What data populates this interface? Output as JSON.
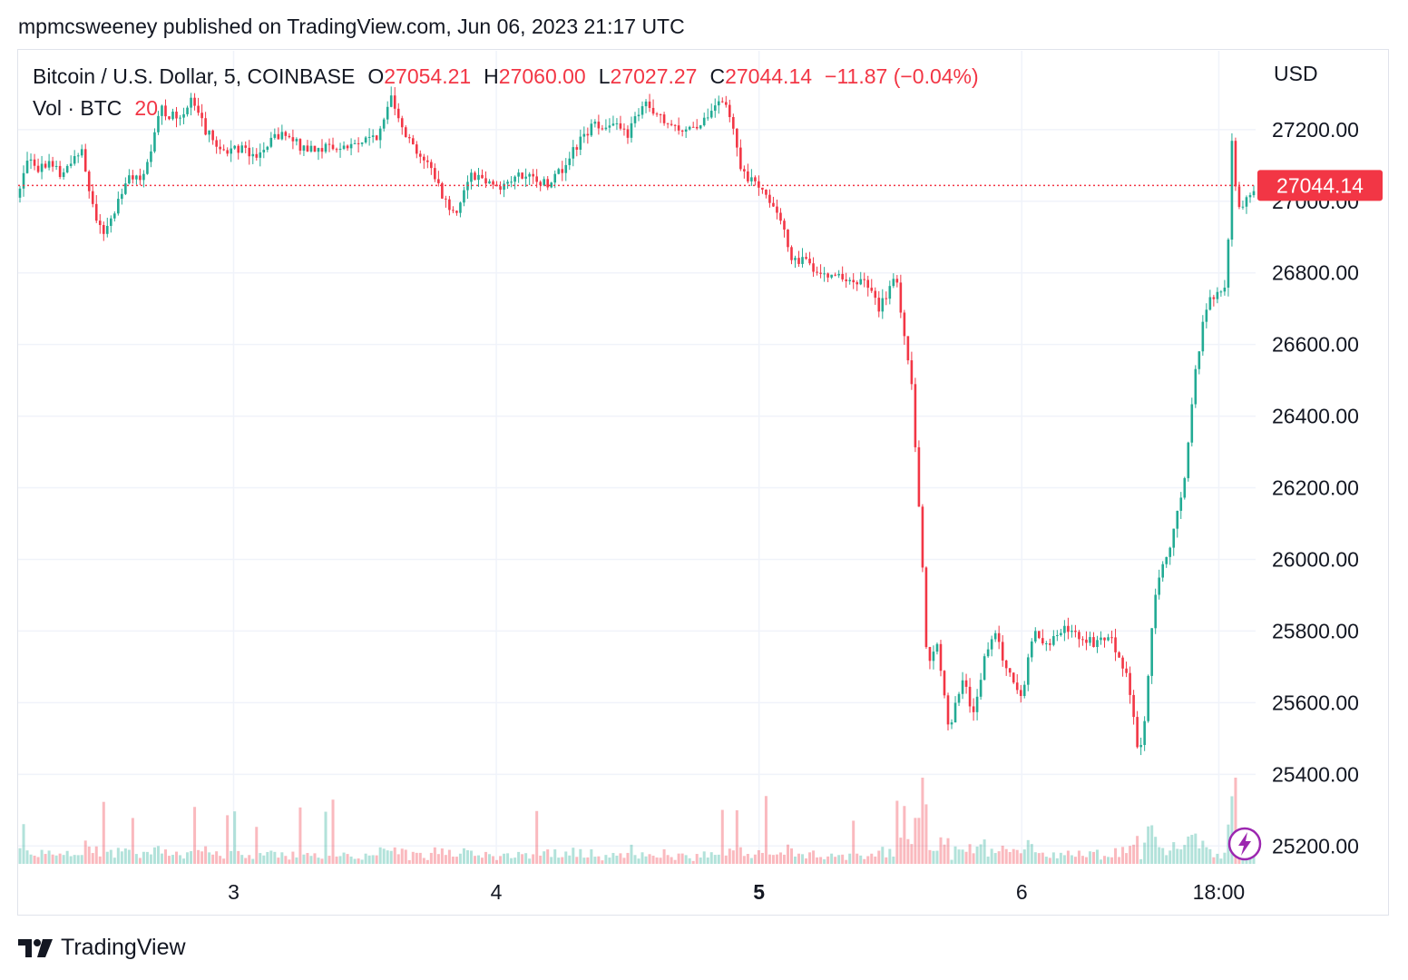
{
  "header": {
    "published": "mpmcsweeney published on TradingView.com, Jun 06, 2023 21:17 UTC"
  },
  "legend": {
    "symbol": "Bitcoin / U.S. Dollar, 5, COINBASE",
    "open_label": "O",
    "open": "27054.21",
    "high_label": "H",
    "high": "27060.00",
    "low_label": "L",
    "low": "27027.27",
    "close_label": "C",
    "close": "27044.14",
    "change": "−11.87 (−0.04%)",
    "volume_label": "Vol · BTC",
    "volume": "20"
  },
  "footer": {
    "brand": "TradingView"
  },
  "colors": {
    "up": "#22ab94",
    "down": "#f23645",
    "grid": "#f0f3fa",
    "text": "#131722",
    "price_tag": "#f23645"
  },
  "icons": {
    "lightning": "lightning-icon",
    "logo": "tradingview-logo"
  },
  "chart_data": {
    "type": "candlestick",
    "interval": "5",
    "exchange": "COINBASE",
    "y_unit": "USD",
    "ylim": [
      25150,
      27420
    ],
    "y_ticks": [
      27200.0,
      27000.0,
      26800.0,
      26600.0,
      26400.0,
      26200.0,
      26000.0,
      25800.0,
      25600.0,
      25400.0,
      25200.0
    ],
    "y_tick_labels": [
      "27200.00",
      "27000.00",
      "26800.00",
      "26600.00",
      "26400.00",
      "26200.00",
      "26000.00",
      "25800.00",
      "25600.00",
      "25400.00",
      "25200.00"
    ],
    "x_ticks": [
      {
        "label": "3",
        "t": 1.0,
        "bold": false
      },
      {
        "label": "4",
        "t": 2.0,
        "bold": false
      },
      {
        "label": "5",
        "t": 3.0,
        "bold": true
      },
      {
        "label": "6",
        "t": 4.0,
        "bold": false
      },
      {
        "label": "18:00",
        "t": 4.75,
        "bold": false
      }
    ],
    "xlim": [
      0.18,
      4.89
    ],
    "last_price": 27044.14,
    "last_price_label": "27044.14",
    "price_path": [
      [
        0.18,
        27010
      ],
      [
        0.22,
        27140
      ],
      [
        0.26,
        27090
      ],
      [
        0.3,
        27120
      ],
      [
        0.34,
        27070
      ],
      [
        0.38,
        27100
      ],
      [
        0.42,
        27160
      ],
      [
        0.45,
        27030
      ],
      [
        0.5,
        26900
      ],
      [
        0.55,
        26980
      ],
      [
        0.6,
        27080
      ],
      [
        0.64,
        27050
      ],
      [
        0.68,
        27110
      ],
      [
        0.72,
        27260
      ],
      [
        0.78,
        27230
      ],
      [
        0.84,
        27280
      ],
      [
        0.9,
        27190
      ],
      [
        0.96,
        27140
      ],
      [
        1.02,
        27150
      ],
      [
        1.1,
        27130
      ],
      [
        1.18,
        27190
      ],
      [
        1.26,
        27150
      ],
      [
        1.34,
        27150
      ],
      [
        1.42,
        27150
      ],
      [
        1.5,
        27170
      ],
      [
        1.56,
        27190
      ],
      [
        1.6,
        27300
      ],
      [
        1.66,
        27180
      ],
      [
        1.7,
        27140
      ],
      [
        1.76,
        27080
      ],
      [
        1.8,
        27010
      ],
      [
        1.84,
        26960
      ],
      [
        1.9,
        27080
      ],
      [
        1.96,
        27060
      ],
      [
        2.02,
        27040
      ],
      [
        2.08,
        27070
      ],
      [
        2.14,
        27060
      ],
      [
        2.2,
        27050
      ],
      [
        2.26,
        27100
      ],
      [
        2.32,
        27170
      ],
      [
        2.38,
        27220
      ],
      [
        2.44,
        27210
      ],
      [
        2.5,
        27190
      ],
      [
        2.56,
        27270
      ],
      [
        2.62,
        27230
      ],
      [
        2.68,
        27200
      ],
      [
        2.74,
        27210
      ],
      [
        2.8,
        27220
      ],
      [
        2.86,
        27290
      ],
      [
        2.9,
        27200
      ],
      [
        2.94,
        27070
      ],
      [
        3.0,
        27050
      ],
      [
        3.06,
        26990
      ],
      [
        3.12,
        26850
      ],
      [
        3.18,
        26830
      ],
      [
        3.24,
        26800
      ],
      [
        3.3,
        26800
      ],
      [
        3.36,
        26760
      ],
      [
        3.4,
        26780
      ],
      [
        3.46,
        26700
      ],
      [
        3.52,
        26790
      ],
      [
        3.58,
        26500
      ],
      [
        3.62,
        26020
      ],
      [
        3.64,
        25700
      ],
      [
        3.68,
        25760
      ],
      [
        3.72,
        25530
      ],
      [
        3.78,
        25660
      ],
      [
        3.82,
        25560
      ],
      [
        3.86,
        25740
      ],
      [
        3.9,
        25790
      ],
      [
        3.94,
        25700
      ],
      [
        4.0,
        25620
      ],
      [
        4.04,
        25790
      ],
      [
        4.1,
        25770
      ],
      [
        4.16,
        25800
      ],
      [
        4.22,
        25790
      ],
      [
        4.28,
        25760
      ],
      [
        4.34,
        25780
      ],
      [
        4.4,
        25680
      ],
      [
        4.44,
        25480
      ],
      [
        4.46,
        25470
      ],
      [
        4.5,
        25870
      ],
      [
        4.54,
        25990
      ],
      [
        4.58,
        26080
      ],
      [
        4.62,
        26240
      ],
      [
        4.66,
        26520
      ],
      [
        4.7,
        26700
      ],
      [
        4.74,
        26750
      ],
      [
        4.78,
        26750
      ],
      [
        4.8,
        27170
      ],
      [
        4.82,
        26980
      ],
      [
        4.84,
        26980
      ],
      [
        4.86,
        27020
      ],
      [
        4.89,
        27044
      ]
    ]
  }
}
